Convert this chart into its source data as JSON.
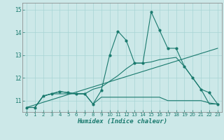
{
  "title": "",
  "xlabel": "Humidex (Indice chaleur)",
  "bg_color": "#cce8e8",
  "line_color": "#1a7a6e",
  "xlim": [
    -0.5,
    23.5
  ],
  "ylim": [
    10.5,
    15.3
  ],
  "yticks": [
    11,
    12,
    13,
    14,
    15
  ],
  "xticks": [
    0,
    1,
    2,
    3,
    4,
    5,
    6,
    7,
    8,
    9,
    10,
    11,
    12,
    13,
    14,
    15,
    16,
    17,
    18,
    19,
    20,
    21,
    22,
    23
  ],
  "series": {
    "line1_x": [
      0,
      1,
      2,
      3,
      4,
      5,
      6,
      7,
      8,
      9,
      10,
      11,
      12,
      13,
      14,
      15,
      16,
      17,
      18,
      19,
      20,
      21,
      22,
      23
    ],
    "line1_y": [
      10.7,
      10.7,
      11.2,
      11.3,
      11.4,
      11.35,
      11.3,
      11.3,
      10.85,
      11.45,
      13.0,
      14.05,
      13.65,
      12.65,
      12.65,
      14.9,
      14.1,
      13.3,
      13.3,
      12.5,
      12.0,
      11.5,
      11.35,
      10.85
    ],
    "line2_x": [
      0,
      1,
      2,
      3,
      4,
      5,
      6,
      7,
      8,
      9,
      10,
      11,
      12,
      13,
      14,
      15,
      16,
      17,
      18,
      19,
      20,
      21,
      22,
      23
    ],
    "line2_y": [
      10.7,
      10.7,
      11.2,
      11.3,
      11.3,
      11.3,
      11.3,
      11.3,
      10.85,
      11.15,
      11.15,
      11.15,
      11.15,
      11.15,
      11.15,
      11.15,
      11.15,
      11.0,
      11.0,
      11.0,
      11.0,
      11.0,
      10.9,
      10.85
    ],
    "line3_x": [
      0,
      23
    ],
    "line3_y": [
      10.7,
      13.3
    ],
    "line4_x": [
      0,
      1,
      2,
      3,
      4,
      5,
      6,
      7,
      8,
      9,
      10,
      11,
      12,
      13,
      14,
      15,
      16,
      17,
      18,
      19,
      20,
      21,
      22,
      23
    ],
    "line4_y": [
      10.7,
      10.7,
      11.2,
      11.3,
      11.4,
      11.35,
      11.3,
      11.3,
      11.5,
      11.6,
      11.85,
      12.1,
      12.4,
      12.65,
      12.65,
      12.7,
      12.8,
      12.85,
      12.9,
      12.5,
      12.0,
      11.5,
      10.85,
      10.85
    ]
  }
}
